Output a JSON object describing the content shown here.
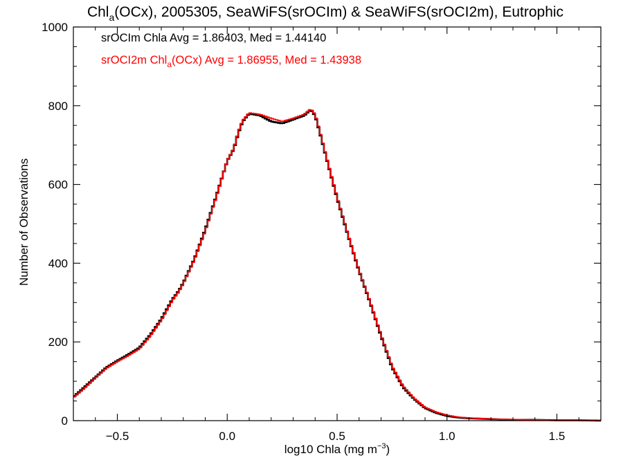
{
  "chart_data": {
    "type": "step-histogram",
    "title": {
      "prefix": "Chl",
      "sub": "a",
      "rest": "(OCx), 2005305, SeaWiFS(srOCIm) & SeaWiFS(srOCI2m), Eutrophic"
    },
    "xlabel": {
      "prefix": "log10 Chla (mg m",
      "sup": "−3",
      "suffix": ")"
    },
    "ylabel": "Number of Observations",
    "xlim": [
      -0.7,
      1.7
    ],
    "ylim": [
      0,
      1000
    ],
    "xticks": [
      -0.5,
      0.0,
      0.5,
      1.0,
      1.5
    ],
    "xtick_labels": [
      "−0.5",
      "0.0",
      "0.5",
      "1.0",
      "1.5"
    ],
    "xminor_step": 0.1,
    "yticks": [
      0,
      200,
      400,
      600,
      800,
      1000
    ],
    "ytick_labels": [
      "0",
      "200",
      "400",
      "600",
      "800",
      "1000"
    ],
    "yminor_step": 50,
    "grid": false,
    "bin_width": 0.01,
    "legend": [
      {
        "text": "srOCIm Chla Avg = 1.86403, Med = 1.44140",
        "color": "#000000"
      },
      {
        "pre": "srOCI2m Chl",
        "sub": "a",
        "post": "(OCx) Avg = 1.86955, Med = 1.43938",
        "color": "#ff0000"
      }
    ],
    "series": [
      {
        "color": "#000000",
        "points": [
          [
            -0.7,
            60
          ],
          [
            -0.65,
            85
          ],
          [
            -0.6,
            110
          ],
          [
            -0.55,
            135
          ],
          [
            -0.5,
            152
          ],
          [
            -0.45,
            168
          ],
          [
            -0.4,
            185
          ],
          [
            -0.35,
            218
          ],
          [
            -0.3,
            258
          ],
          [
            -0.25,
            308
          ],
          [
            -0.22,
            330
          ],
          [
            -0.2,
            350
          ],
          [
            -0.15,
            410
          ],
          [
            -0.1,
            485
          ],
          [
            -0.05,
            570
          ],
          [
            0.0,
            660
          ],
          [
            0.03,
            690
          ],
          [
            0.05,
            730
          ],
          [
            0.07,
            760
          ],
          [
            0.1,
            780
          ],
          [
            0.15,
            775
          ],
          [
            0.2,
            760
          ],
          [
            0.25,
            755
          ],
          [
            0.3,
            765
          ],
          [
            0.35,
            775
          ],
          [
            0.38,
            790
          ],
          [
            0.4,
            775
          ],
          [
            0.42,
            735
          ],
          [
            0.45,
            670
          ],
          [
            0.5,
            565
          ],
          [
            0.55,
            470
          ],
          [
            0.6,
            380
          ],
          [
            0.65,
            300
          ],
          [
            0.7,
            215
          ],
          [
            0.75,
            135
          ],
          [
            0.8,
            85
          ],
          [
            0.85,
            55
          ],
          [
            0.9,
            32
          ],
          [
            0.95,
            20
          ],
          [
            1.0,
            12
          ],
          [
            1.05,
            8
          ],
          [
            1.1,
            6
          ],
          [
            1.2,
            4
          ],
          [
            1.3,
            2
          ],
          [
            1.4,
            2
          ],
          [
            1.5,
            1
          ],
          [
            1.6,
            1
          ],
          [
            1.7,
            0
          ]
        ]
      },
      {
        "color": "#ff0000",
        "points": [
          [
            -0.7,
            58
          ],
          [
            -0.65,
            82
          ],
          [
            -0.6,
            108
          ],
          [
            -0.55,
            133
          ],
          [
            -0.5,
            150
          ],
          [
            -0.45,
            165
          ],
          [
            -0.4,
            182
          ],
          [
            -0.35,
            215
          ],
          [
            -0.3,
            255
          ],
          [
            -0.25,
            305
          ],
          [
            -0.22,
            328
          ],
          [
            -0.2,
            348
          ],
          [
            -0.15,
            408
          ],
          [
            -0.1,
            482
          ],
          [
            -0.05,
            568
          ],
          [
            0.0,
            660
          ],
          [
            0.03,
            692
          ],
          [
            0.05,
            733
          ],
          [
            0.07,
            762
          ],
          [
            0.1,
            782
          ],
          [
            0.15,
            778
          ],
          [
            0.2,
            768
          ],
          [
            0.25,
            760
          ],
          [
            0.3,
            768
          ],
          [
            0.35,
            778
          ],
          [
            0.38,
            792
          ],
          [
            0.4,
            778
          ],
          [
            0.42,
            738
          ],
          [
            0.45,
            672
          ],
          [
            0.5,
            568
          ],
          [
            0.55,
            472
          ],
          [
            0.6,
            382
          ],
          [
            0.65,
            302
          ],
          [
            0.7,
            218
          ],
          [
            0.75,
            138
          ],
          [
            0.8,
            88
          ],
          [
            0.85,
            57
          ],
          [
            0.9,
            34
          ],
          [
            0.95,
            22
          ],
          [
            1.0,
            14
          ],
          [
            1.05,
            9
          ],
          [
            1.1,
            7
          ],
          [
            1.2,
            4
          ],
          [
            1.3,
            3
          ],
          [
            1.4,
            2
          ],
          [
            1.5,
            1
          ],
          [
            1.6,
            1
          ],
          [
            1.7,
            0
          ]
        ]
      }
    ]
  }
}
